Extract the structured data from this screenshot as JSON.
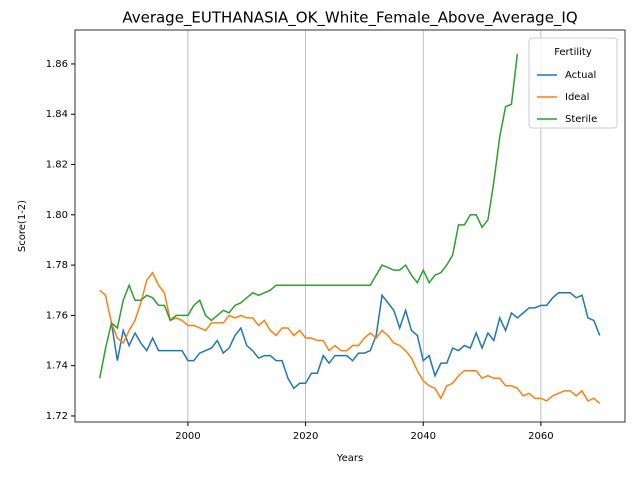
{
  "chart_data": {
    "type": "line",
    "title": "Average_EUTHANASIA_OK_White_Female_Above_Average_IQ",
    "x_label": "Years",
    "y_label": "Score(1-2)",
    "legend_title": "Fertility",
    "legend": "upper right",
    "grid": "x",
    "x": [
      1985,
      1986,
      1987,
      1988,
      1989,
      1990,
      1991,
      1992,
      1993,
      1994,
      1995,
      1996,
      1997,
      1998,
      1999,
      2000,
      2001,
      2002,
      2003,
      2004,
      2005,
      2006,
      2007,
      2008,
      2009,
      2010,
      2011,
      2012,
      2013,
      2014,
      2015,
      2016,
      2017,
      2018,
      2019,
      2020,
      2021,
      2022,
      2023,
      2024,
      2025,
      2026,
      2027,
      2028,
      2029,
      2030,
      2031,
      2032,
      2033,
      2034,
      2035,
      2036,
      2037,
      2038,
      2039,
      2040,
      2041,
      2042,
      2043,
      2044,
      2045,
      2046,
      2047,
      2048,
      2049,
      2050,
      2051,
      2052,
      2053,
      2054,
      2055,
      2056,
      2057,
      2058,
      2059,
      2060,
      2061,
      2062,
      2063,
      2064,
      2065,
      2066,
      2067,
      2068,
      2069,
      2070
    ],
    "series": [
      {
        "name": "Actual",
        "color": "#1f77b4",
        "values": [
          null,
          null,
          1.757,
          1.742,
          1.754,
          1.748,
          1.753,
          1.749,
          1.746,
          1.751,
          1.746,
          1.746,
          1.746,
          1.746,
          1.746,
          1.742,
          1.742,
          1.745,
          1.746,
          1.747,
          1.75,
          1.745,
          1.747,
          1.752,
          1.755,
          1.748,
          1.746,
          1.743,
          1.744,
          1.744,
          1.742,
          1.742,
          1.735,
          1.731,
          1.733,
          1.733,
          1.737,
          1.737,
          1.744,
          1.741,
          1.744,
          1.744,
          1.744,
          1.742,
          1.745,
          1.745,
          1.746,
          1.752,
          1.768,
          1.765,
          1.762,
          1.755,
          1.762,
          1.754,
          1.752,
          1.742,
          1.744,
          1.736,
          1.741,
          1.741,
          1.747,
          1.746,
          1.748,
          1.747,
          1.753,
          1.747,
          1.753,
          1.75,
          1.759,
          1.754,
          1.761,
          1.759,
          1.761,
          1.763,
          1.763,
          1.764,
          1.764,
          1.767,
          1.769,
          1.769,
          1.769,
          1.767,
          1.768,
          1.759,
          1.758,
          1.752
        ]
      },
      {
        "name": "Ideal",
        "color": "#ff7f0e",
        "values": [
          1.77,
          1.768,
          1.757,
          1.751,
          1.749,
          1.754,
          1.758,
          1.765,
          1.774,
          1.777,
          1.772,
          1.769,
          1.758,
          1.759,
          1.758,
          1.756,
          1.756,
          1.755,
          1.754,
          1.757,
          1.757,
          1.757,
          1.76,
          1.759,
          1.76,
          1.759,
          1.759,
          1.756,
          1.758,
          1.754,
          1.752,
          1.755,
          1.755,
          1.752,
          1.754,
          1.751,
          1.751,
          1.75,
          1.75,
          1.746,
          1.748,
          1.746,
          1.746,
          1.748,
          1.748,
          1.751,
          1.753,
          1.751,
          1.754,
          1.752,
          1.749,
          1.748,
          1.746,
          1.743,
          1.738,
          1.734,
          1.732,
          1.731,
          1.727,
          1.732,
          1.733,
          1.736,
          1.738,
          1.738,
          1.738,
          1.735,
          1.736,
          1.735,
          1.735,
          1.732,
          1.732,
          1.731,
          1.728,
          1.729,
          1.727,
          1.727,
          1.726,
          1.728,
          1.729,
          1.73,
          1.73,
          1.728,
          1.73,
          1.726,
          1.727,
          1.725
        ]
      },
      {
        "name": "Sterile",
        "color": "#2ca02c",
        "values": [
          1.735,
          1.747,
          1.757,
          1.755,
          1.766,
          1.772,
          1.766,
          1.766,
          1.768,
          1.767,
          1.764,
          1.764,
          1.758,
          1.76,
          1.76,
          1.76,
          1.764,
          1.766,
          1.76,
          1.758,
          1.76,
          1.762,
          1.761,
          1.764,
          1.765,
          1.767,
          1.769,
          1.768,
          1.769,
          1.77,
          1.772,
          1.772,
          1.772,
          1.772,
          1.772,
          1.772,
          1.772,
          1.772,
          1.772,
          1.772,
          1.772,
          1.772,
          1.772,
          1.772,
          1.772,
          1.772,
          1.772,
          1.776,
          1.78,
          1.779,
          1.778,
          1.778,
          1.78,
          1.776,
          1.773,
          1.778,
          1.773,
          1.776,
          1.777,
          1.78,
          1.784,
          1.796,
          1.796,
          1.8,
          1.8,
          1.795,
          1.798,
          1.813,
          1.831,
          1.843,
          1.844,
          1.864,
          null,
          null,
          null,
          null,
          null,
          null,
          null,
          null,
          null,
          null,
          null,
          null,
          null,
          null
        ]
      }
    ],
    "xlim": [
      1980.8,
      2074.3
    ],
    "xticks": [
      2000,
      2020,
      2040,
      2060
    ],
    "ylim": [
      1.7176,
      1.8735
    ],
    "yticks": [
      1.72,
      1.74,
      1.76,
      1.78,
      {
        "value": 1.8,
        "label": "1.80"
      },
      1.82,
      1.84,
      1.86
    ]
  }
}
